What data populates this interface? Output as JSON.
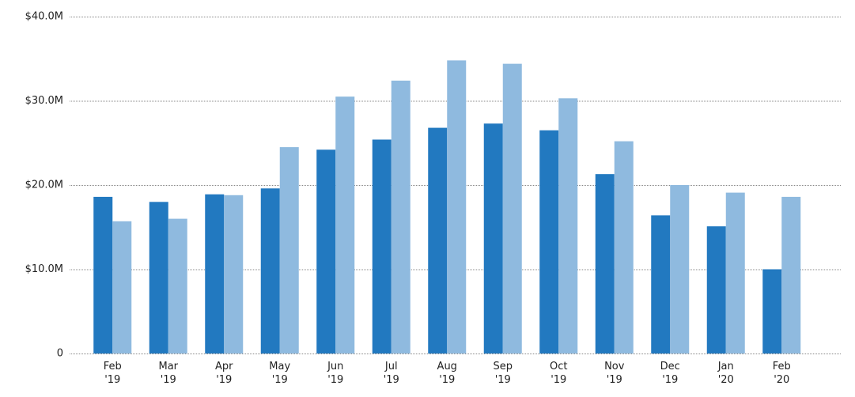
{
  "chart_data": {
    "type": "bar",
    "categories": [
      "Feb\n'19",
      "Mar\n'19",
      "Apr\n'19",
      "May\n'19",
      "Jun\n'19",
      "Jul\n'19",
      "Aug\n'19",
      "Sep\n'19",
      "Oct\n'19",
      "Nov\n'19",
      "Dec\n'19",
      "Jan\n'20",
      "Feb\n'20"
    ],
    "series": [
      {
        "color": "#2279c0",
        "values": [
          18600000,
          18000000,
          18900000,
          19600000,
          24200000,
          25400000,
          26800000,
          27300000,
          26500000,
          21300000,
          16400000,
          15100000,
          10000000
        ]
      },
      {
        "color": "#8fbadf",
        "values": [
          15700000,
          16000000,
          18800000,
          24500000,
          30500000,
          32400000,
          34800000,
          34400000,
          30300000,
          25200000,
          20000000,
          19100000,
          18600000
        ]
      }
    ],
    "ylim": [
      0,
      40000000
    ],
    "yticks": [
      0,
      {
        "value": 10000000,
        "label": "$10.0M"
      },
      {
        "value": 20000000,
        "label": "$20.0M"
      },
      {
        "value": 30000000,
        "label": "$30.0M"
      },
      {
        "value": 40000000,
        "label": "$40.0M"
      }
    ],
    "grid": true
  }
}
